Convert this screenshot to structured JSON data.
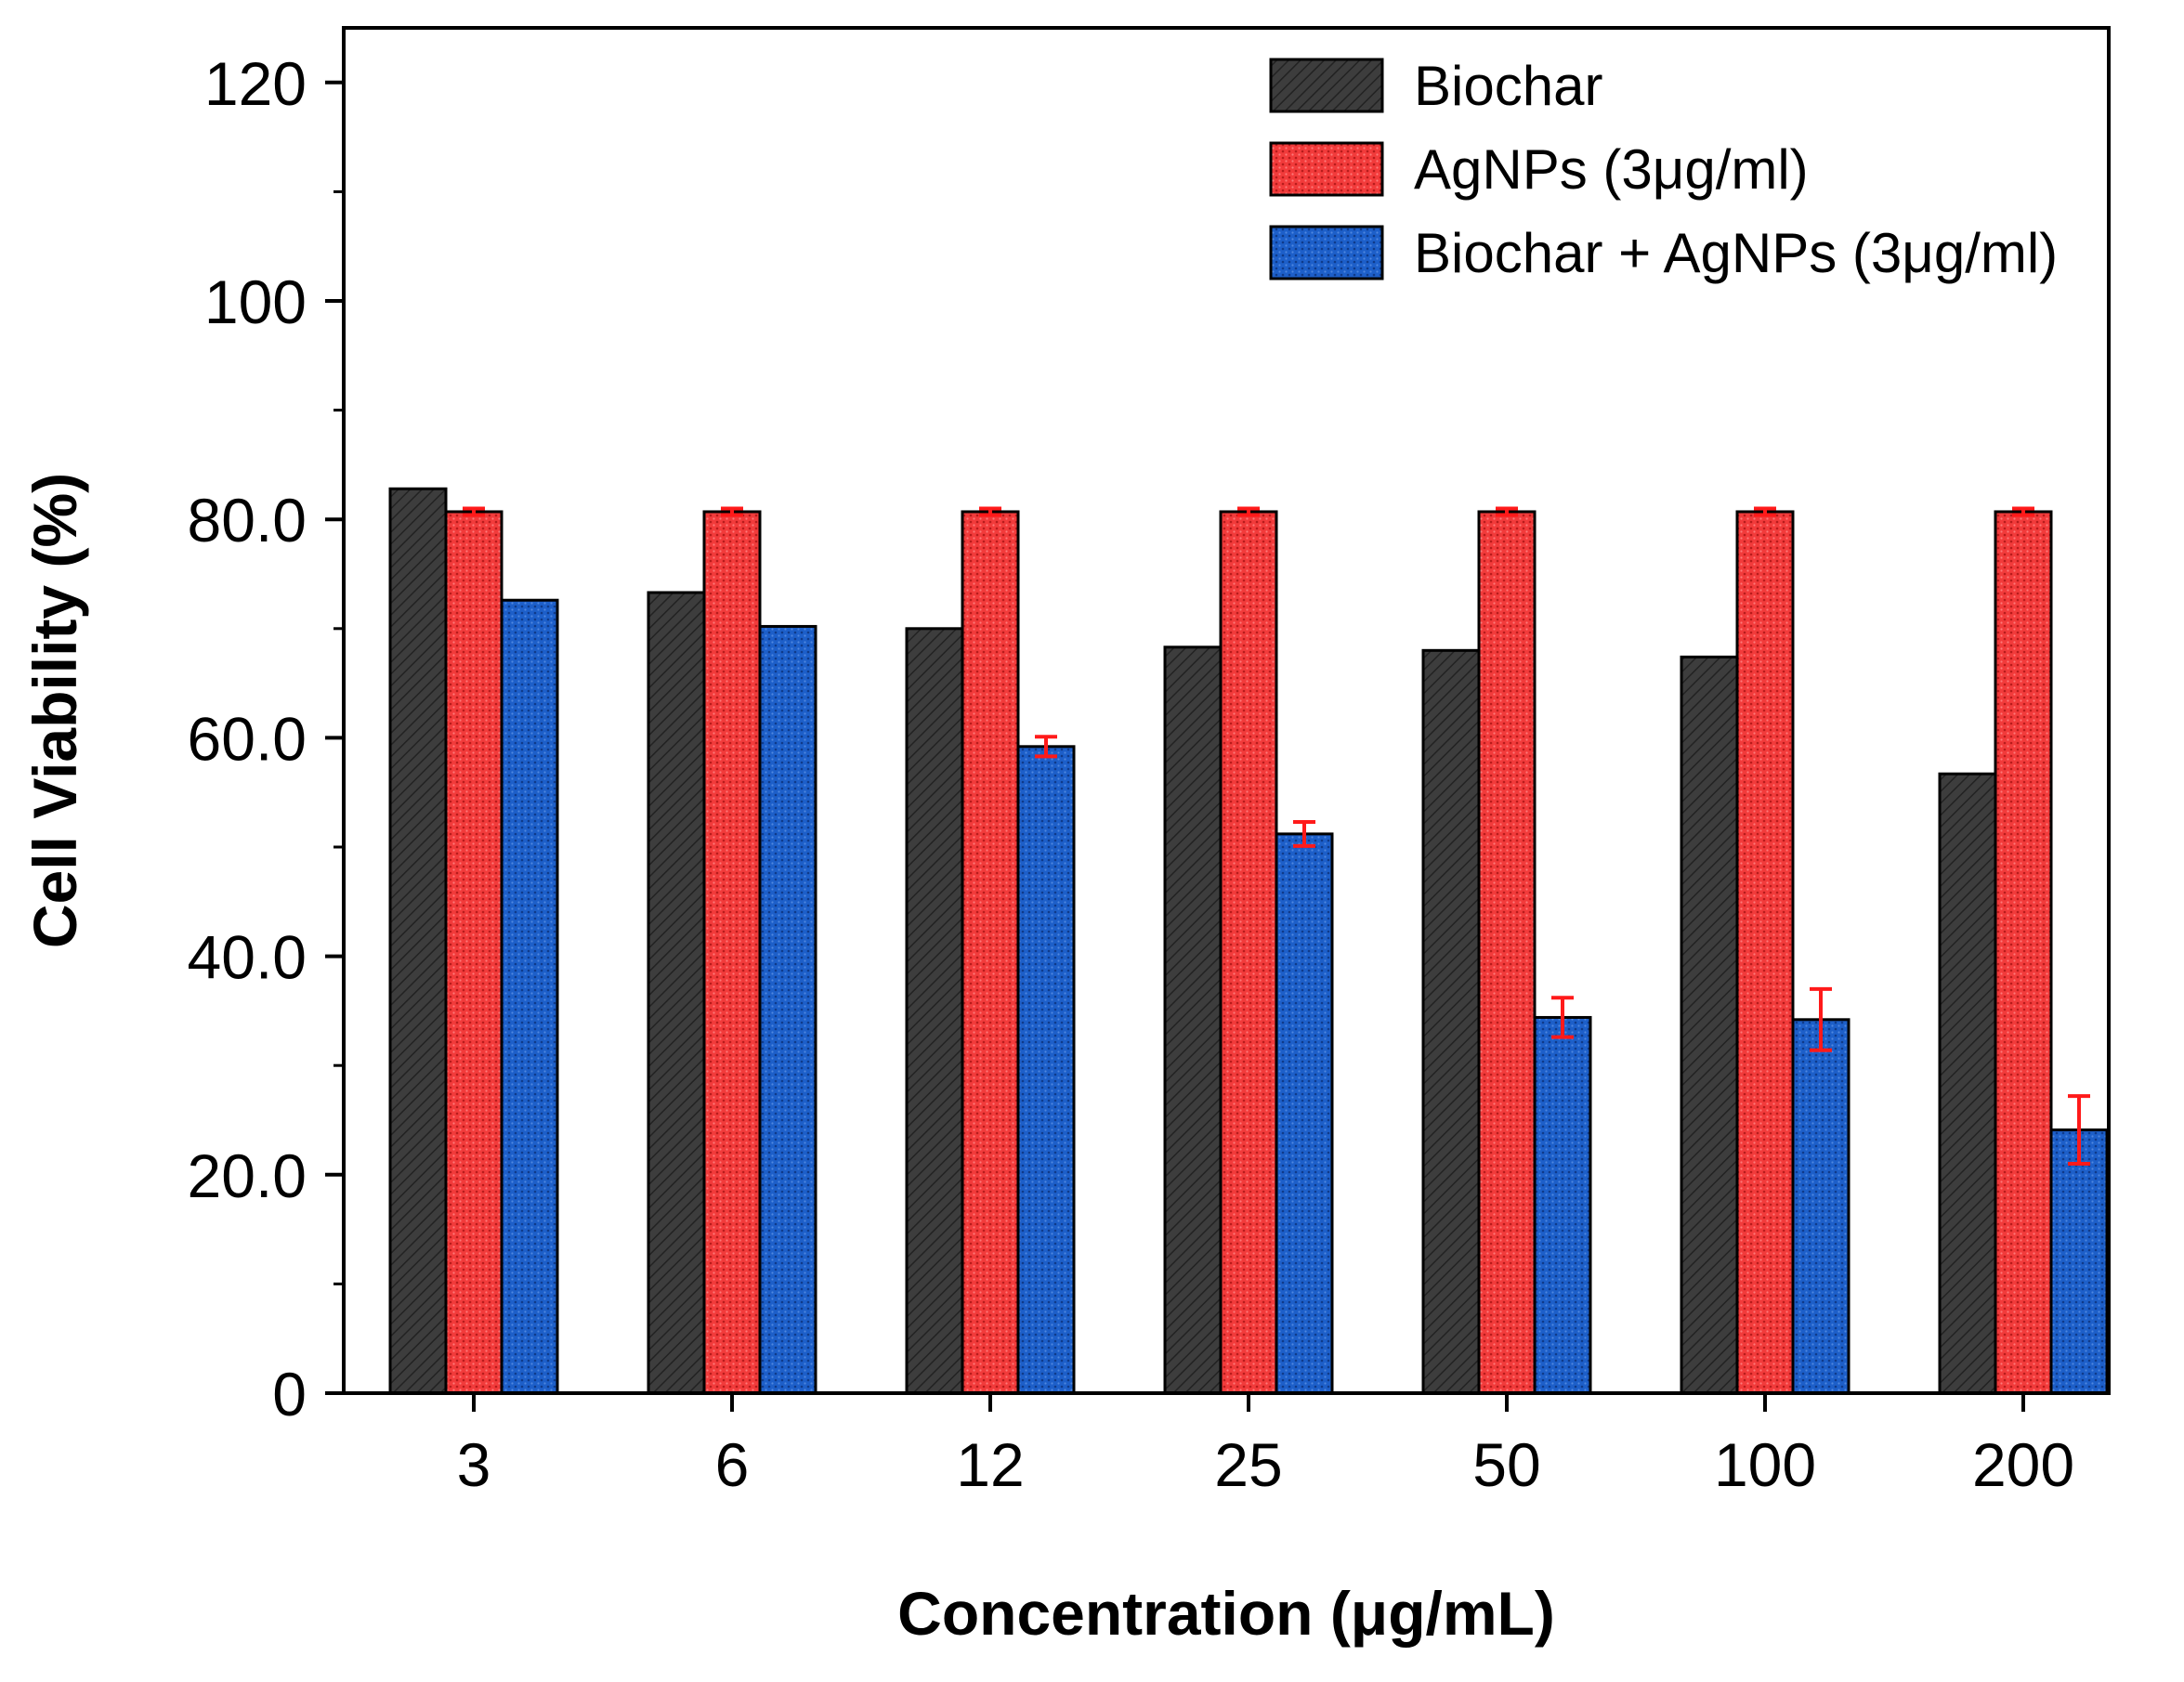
{
  "chart_data": {
    "type": "bar",
    "title": "",
    "xlabel": "Concentration (μg/mL)",
    "ylabel": "Cell Viability (%)",
    "ylim": [
      0,
      125
    ],
    "yticks": [
      0,
      20,
      40,
      60,
      80,
      100,
      120
    ],
    "ytick_labels": [
      "0",
      "20.0",
      "40.0",
      "60.0",
      "80.0",
      "100",
      "120"
    ],
    "grid": false,
    "legend_position": "top-right",
    "categories": [
      "3",
      "6",
      "12",
      "25",
      "50",
      "100",
      "200"
    ],
    "series": [
      {
        "name": "Biochar",
        "color": "#3d3d3d",
        "pattern": "hatch",
        "values": [
          82.8,
          73.3,
          70.0,
          68.3,
          68.0,
          67.4,
          56.7
        ],
        "errors": [
          0,
          0,
          0,
          0,
          0,
          0,
          0
        ]
      },
      {
        "name": "AgNPs (3μg/ml)",
        "color": "#f23b3b",
        "pattern": "dots",
        "values": [
          80.7,
          80.7,
          80.7,
          80.7,
          80.7,
          80.7,
          80.7
        ],
        "errors": [
          0.3,
          0.3,
          0.3,
          0.3,
          0.3,
          0.3,
          0.3
        ]
      },
      {
        "name": "Biochar + AgNPs (3μg/ml)",
        "color": "#1d5fc9",
        "pattern": "dots",
        "values": [
          72.6,
          70.2,
          59.2,
          51.2,
          34.4,
          34.2,
          24.1
        ],
        "errors": [
          0,
          0,
          0.9,
          1.1,
          1.8,
          2.8,
          3.1
        ]
      }
    ]
  }
}
